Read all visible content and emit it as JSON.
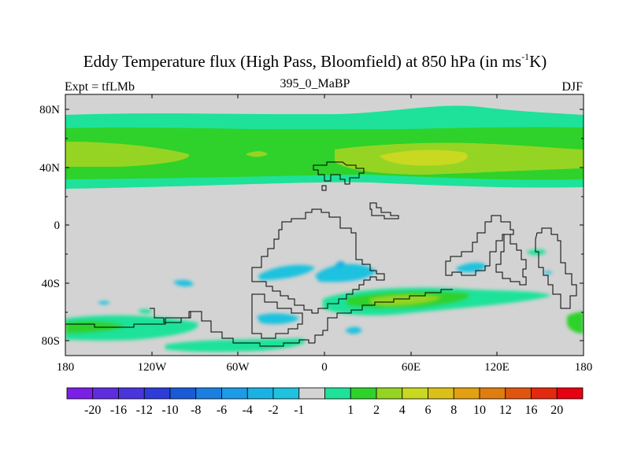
{
  "title": {
    "main": "Eddy Temperature flux (High Pass, Bloomfield) at 850 hPa (in ms",
    "superscript": "-1",
    "end": "K)"
  },
  "left_label": "Expt = tfLMb",
  "center_label": "395_0_MaBP",
  "right_label": "DJF",
  "map": {
    "lat_ticks": [
      "80N",
      "40N",
      "0",
      "40S",
      "80S"
    ],
    "lon_ticks": [
      "180",
      "120W",
      "60W",
      "0",
      "60E",
      "120E",
      "180"
    ],
    "background_color": "#d3d3d3"
  },
  "colorbar": {
    "colors": [
      "#7b1fe6",
      "#5f2de0",
      "#4a35dd",
      "#2e3cd8",
      "#1a5ad6",
      "#1b7fe0",
      "#1c9be6",
      "#1cb1e3",
      "#1fc2df",
      "#d3d3d3",
      "#1ee29a",
      "#2ed22a",
      "#96d424",
      "#c9d820",
      "#dcc01a",
      "#e2a012",
      "#e07d10",
      "#df5510",
      "#e22a10",
      "#e60012"
    ],
    "labels": [
      "-20",
      "-16",
      "-12",
      "-10",
      "-8",
      "-6",
      "-4",
      "-2",
      "-1",
      "1",
      "2",
      "4",
      "6",
      "8",
      "10",
      "12",
      "16",
      "20"
    ]
  }
}
